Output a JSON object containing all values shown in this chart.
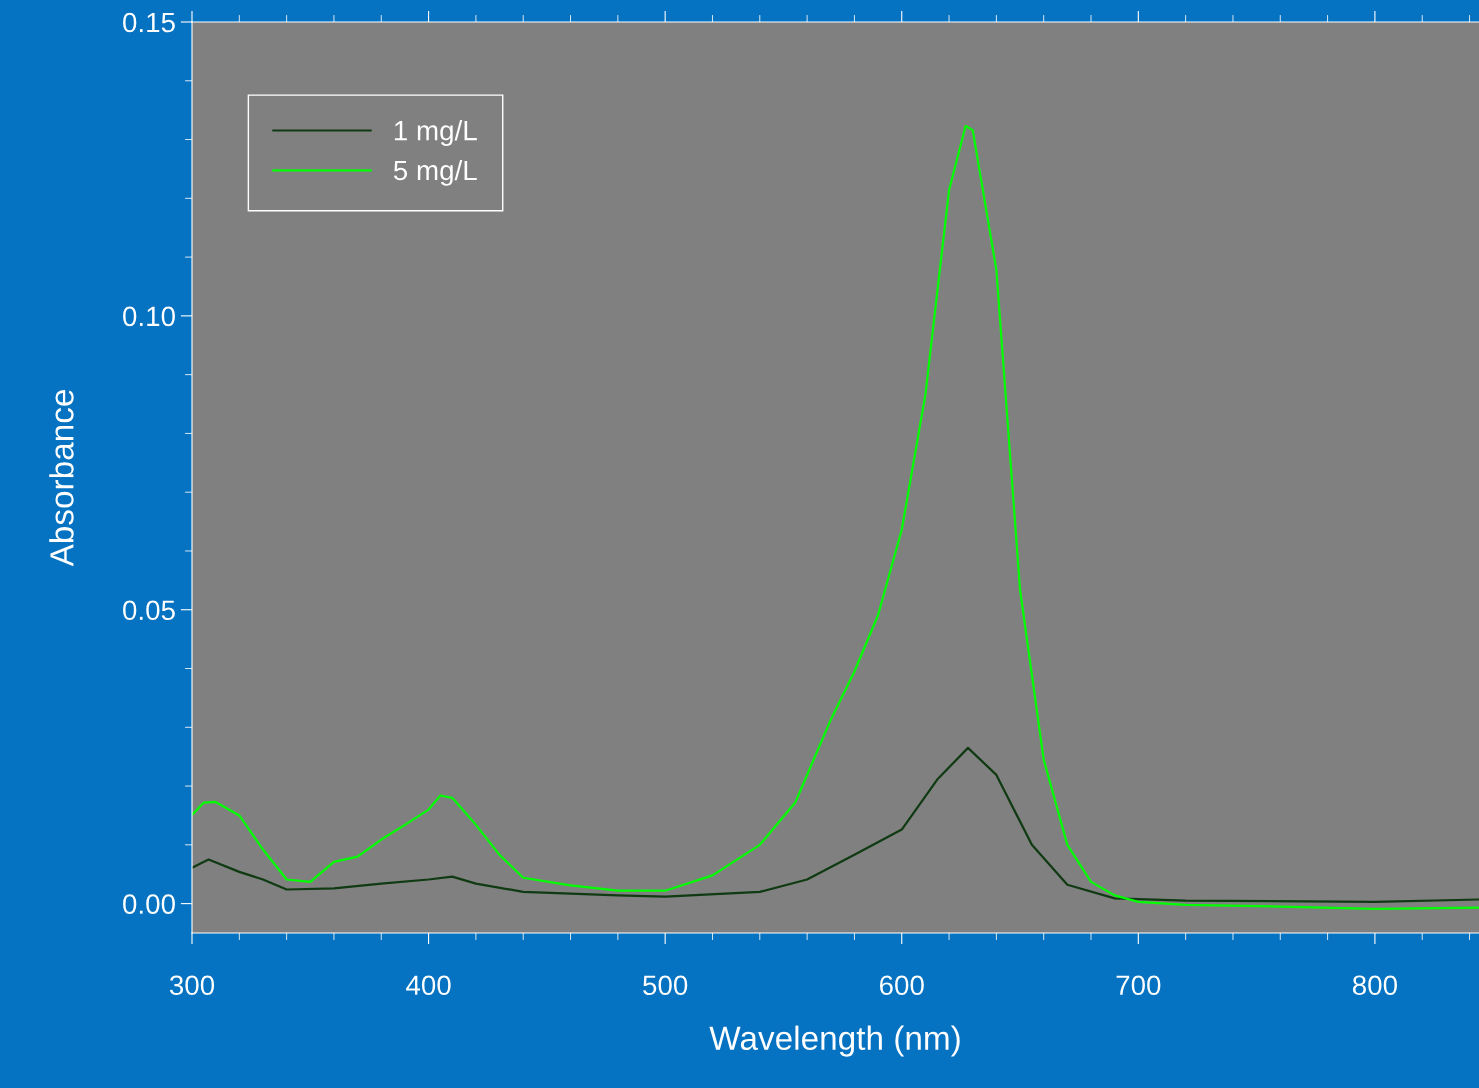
{
  "chart_data": {
    "type": "line",
    "xlabel": "Wavelength (nm)",
    "ylabel": "Absorbance",
    "xlim": [
      300,
      844
    ],
    "ylim": [
      -0.005,
      0.15
    ],
    "xticks": [
      300,
      400,
      500,
      600,
      700,
      800
    ],
    "yticks": [
      {
        "value": 0,
        "label": "0.00"
      },
      {
        "value": 0.05,
        "label": "0.05"
      },
      {
        "value": 0.1,
        "label": "0.10"
      },
      {
        "value": 0.15,
        "label": "0.15"
      }
    ],
    "grid": false,
    "legend": "top left",
    "line_style": "solid",
    "marker": "none",
    "series": [
      {
        "name": "1 mg/L",
        "color": "#0f3a12",
        "x": [
          300,
          307,
          320,
          330,
          340,
          360,
          380,
          400,
          410,
          420,
          440,
          480,
          500,
          540,
          560,
          580,
          600,
          615,
          628,
          640,
          655,
          670,
          690,
          720,
          800,
          844
        ],
        "values": [
          0.0061,
          0.0075,
          0.0054,
          0.0041,
          0.0024,
          0.0026,
          0.0034,
          0.0041,
          0.0046,
          0.0034,
          0.002,
          0.0014,
          0.0012,
          0.002,
          0.0041,
          0.0083,
          0.0126,
          0.0211,
          0.0265,
          0.0219,
          0.01,
          0.0032,
          0.0009,
          0.0005,
          0.0003,
          0.0007
        ]
      },
      {
        "name": "5 mg/L",
        "color": "#00ff00",
        "x": [
          300,
          305,
          310,
          320,
          330,
          340,
          350,
          360,
          370,
          380,
          390,
          400,
          405,
          410,
          420,
          430,
          440,
          460,
          480,
          500,
          520,
          540,
          555,
          570,
          580,
          590,
          600,
          610,
          620,
          627,
          630,
          640,
          650,
          660,
          670,
          680,
          690,
          700,
          720,
          760,
          800,
          844
        ],
        "values": [
          0.0151,
          0.0172,
          0.0173,
          0.015,
          0.0092,
          0.0041,
          0.0037,
          0.0071,
          0.008,
          0.0109,
          0.0134,
          0.016,
          0.0184,
          0.018,
          0.0134,
          0.0083,
          0.0044,
          0.0031,
          0.0022,
          0.0022,
          0.0048,
          0.01,
          0.0172,
          0.0313,
          0.0395,
          0.0491,
          0.0636,
          0.0866,
          0.1214,
          0.1323,
          0.1316,
          0.1078,
          0.0534,
          0.0245,
          0.01,
          0.0037,
          0.0014,
          0.0003,
          -0.0002,
          -0.0005,
          -0.0009,
          -0.0007
        ]
      }
    ]
  }
}
